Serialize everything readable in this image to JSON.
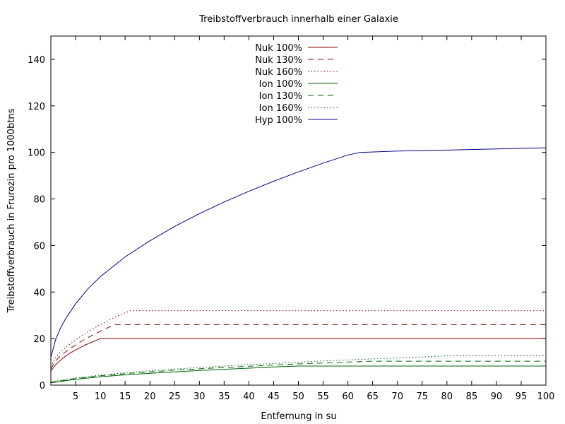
{
  "chart_data": {
    "type": "line",
    "title": "Treibstoffverbrauch innerhalb einer Galaxie",
    "xlabel": "Entfernung in su",
    "ylabel": "Treibstoffverbrauch in Frurozin pro 1000btns",
    "xlim": [
      0,
      100
    ],
    "ylim": [
      0,
      150
    ],
    "xticks": [
      5,
      10,
      15,
      20,
      25,
      30,
      35,
      40,
      45,
      50,
      55,
      60,
      65,
      70,
      75,
      80,
      85,
      90,
      95,
      100
    ],
    "yticks": [
      0,
      20,
      40,
      60,
      80,
      100,
      120,
      140
    ],
    "grid": false,
    "legend_position": "top-center",
    "series": [
      {
        "name": "Nuk 100%",
        "color": "#8b0000",
        "dash": "solid",
        "x": [
          0,
          1,
          2,
          3,
          4,
          5,
          6,
          7,
          8,
          9,
          10,
          100
        ],
        "y": [
          6.0,
          8.8,
          10.8,
          12.5,
          13.9,
          15.1,
          16.2,
          17.3,
          18.2,
          19.1,
          20.0,
          20.0
        ]
      },
      {
        "name": "Nuk 130%",
        "color": "#8b0000",
        "dash": "dashed",
        "x": [
          0,
          1,
          2,
          4,
          6,
          8,
          10,
          11,
          12,
          13,
          100
        ],
        "y": [
          7.0,
          10.5,
          12.7,
          15.9,
          18.6,
          21.0,
          23.2,
          24.2,
          25.1,
          26.0,
          26.0
        ]
      },
      {
        "name": "Nuk 160%",
        "color": "#8b0000",
        "dash": "dotted",
        "x": [
          0,
          1,
          2,
          4,
          6,
          8,
          10,
          12,
          14,
          16,
          100
        ],
        "y": [
          8.0,
          11.9,
          14.4,
          17.9,
          20.9,
          23.6,
          26.0,
          28.2,
          30.2,
          32.0,
          32.0
        ]
      },
      {
        "name": "Ion 100%",
        "color": "#006400",
        "dash": "solid",
        "x": [
          0,
          5,
          10,
          15,
          20,
          25,
          30,
          35,
          40,
          45,
          50,
          100
        ],
        "y": [
          1.0,
          2.5,
          3.6,
          4.4,
          5.1,
          5.7,
          6.3,
          6.8,
          7.3,
          7.8,
          8.2,
          8.2
        ]
      },
      {
        "name": "Ion 130%",
        "color": "#006400",
        "dash": "dashed",
        "x": [
          0,
          5,
          10,
          15,
          20,
          25,
          30,
          35,
          40,
          45,
          50,
          55,
          60,
          65,
          100
        ],
        "y": [
          1.2,
          2.8,
          4.0,
          4.9,
          5.7,
          6.4,
          7.0,
          7.6,
          8.1,
          8.6,
          9.1,
          9.5,
          9.9,
          10.3,
          10.3
        ]
      },
      {
        "name": "Ion 160%",
        "color": "#006400",
        "dash": "dotted",
        "x": [
          0,
          5,
          10,
          15,
          20,
          25,
          30,
          35,
          40,
          45,
          50,
          55,
          60,
          65,
          70,
          75,
          80,
          100
        ],
        "y": [
          1.4,
          3.1,
          4.3,
          5.3,
          6.2,
          6.9,
          7.6,
          8.2,
          8.8,
          9.3,
          9.9,
          10.4,
          10.8,
          11.3,
          11.7,
          12.1,
          12.6,
          12.6
        ]
      },
      {
        "name": "Hyp 100%",
        "color": "#00008b",
        "dash": "solid",
        "x": [
          0,
          1,
          2,
          3,
          5,
          7.5,
          10,
          15,
          20,
          25,
          30,
          35,
          40,
          45,
          50,
          55,
          60,
          62.5,
          70,
          80,
          90,
          100
        ],
        "y": [
          12.0,
          19.8,
          24.7,
          28.6,
          35.0,
          41.4,
          46.6,
          55.1,
          62.0,
          68.2,
          73.7,
          78.7,
          83.3,
          87.6,
          91.6,
          95.4,
          98.9,
          100.0,
          100.6,
          101.0,
          101.5,
          102.0
        ]
      }
    ]
  }
}
